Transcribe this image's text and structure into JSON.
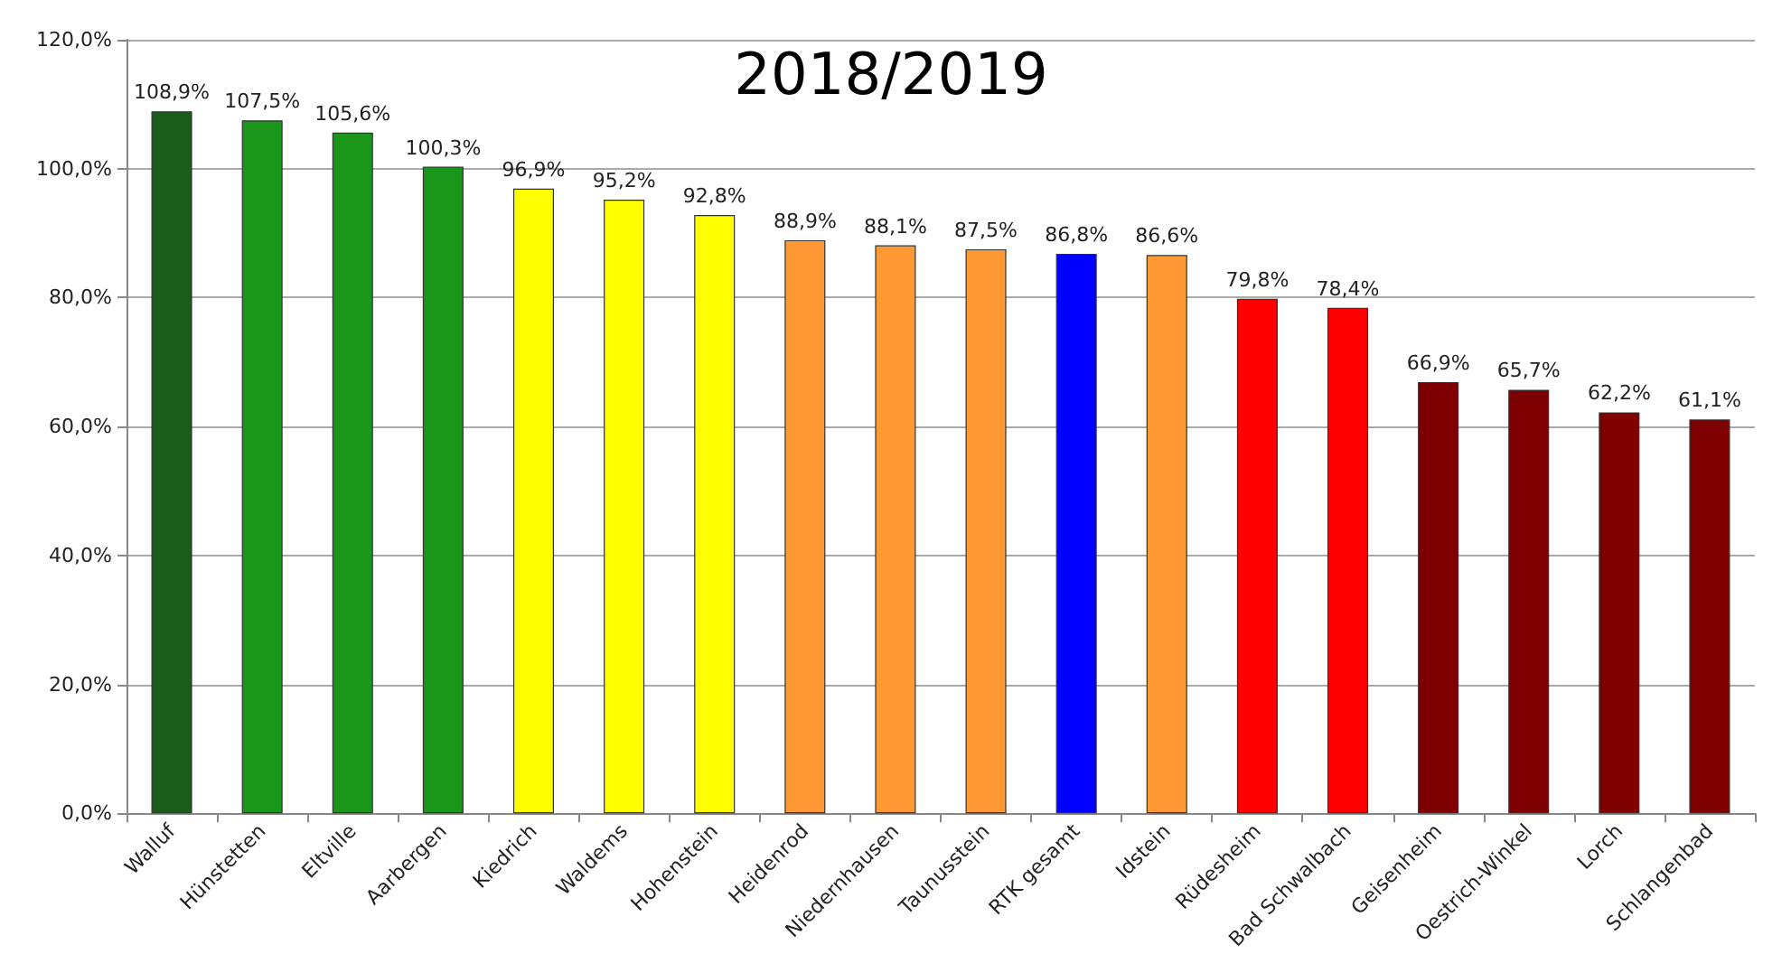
{
  "chart_data": {
    "type": "bar",
    "title": "2018/2019",
    "categories": [
      "Walluf",
      "Hünstetten",
      "Eltville",
      "Aarbergen",
      "Kiedrich",
      "Waldems",
      "Hohenstein",
      "Heidenrod",
      "Niedernhausen",
      "Taunusstein",
      "RTK gesamt",
      "Idstein",
      "Rüdesheim",
      "Bad Schwalbach",
      "Geisenheim",
      "Oestrich-Winkel",
      "Lorch",
      "Schlangenbad"
    ],
    "values": [
      108.9,
      107.5,
      105.6,
      100.3,
      96.9,
      95.2,
      92.8,
      88.9,
      88.1,
      87.5,
      86.8,
      86.6,
      79.8,
      78.4,
      66.9,
      65.7,
      62.2,
      61.1
    ],
    "colors": [
      "#1a5c1a",
      "#1a961a",
      "#1a961a",
      "#1a961a",
      "#ffff00",
      "#ffff00",
      "#ffff00",
      "#ff9933",
      "#ff9933",
      "#ff9933",
      "#0000ff",
      "#ff9933",
      "#ff0000",
      "#ff0000",
      "#7f0000",
      "#7f0000",
      "#7f0000",
      "#7f0000"
    ],
    "value_labels": [
      "108,9%",
      "107,5%",
      "105,6%",
      "100,3%",
      "96,9%",
      "95,2%",
      "92,8%",
      "88,9%",
      "88,1%",
      "87,5%",
      "86,8%",
      "86,6%",
      "79,8%",
      "78,4%",
      "66,9%",
      "65,7%",
      "62,2%",
      "61,1%"
    ],
    "ylim": [
      0,
      120
    ],
    "yticks": [
      {
        "value": 0,
        "label": "0,0%"
      },
      {
        "value": 20,
        "label": "20,0%"
      },
      {
        "value": 40,
        "label": "40,0%"
      },
      {
        "value": 60,
        "label": "60,0%"
      },
      {
        "value": 80,
        "label": "80,0%"
      },
      {
        "value": 100,
        "label": "100,0%"
      },
      {
        "value": 120,
        "label": "120,0%"
      }
    ],
    "grid": "y"
  }
}
